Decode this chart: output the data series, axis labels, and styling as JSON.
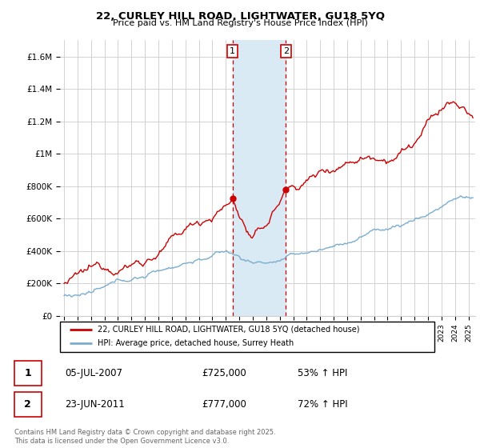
{
  "title1": "22, CURLEY HILL ROAD, LIGHTWATER, GU18 5YQ",
  "title2": "Price paid vs. HM Land Registry's House Price Index (HPI)",
  "ylabel_ticks": [
    "£0",
    "£200K",
    "£400K",
    "£600K",
    "£800K",
    "£1M",
    "£1.2M",
    "£1.4M",
    "£1.6M"
  ],
  "ytick_values": [
    0,
    200000,
    400000,
    600000,
    800000,
    1000000,
    1200000,
    1400000,
    1600000
  ],
  "ylim": [
    0,
    1700000
  ],
  "xlim_start": 1994.7,
  "xlim_end": 2025.5,
  "legend_line1": "22, CURLEY HILL ROAD, LIGHTWATER, GU18 5YQ (detached house)",
  "legend_line2": "HPI: Average price, detached house, Surrey Heath",
  "sale1_date": "05-JUL-2007",
  "sale1_price": "£725,000",
  "sale1_hpi": "53% ↑ HPI",
  "sale1_year": 2007.5,
  "sale1_price_val": 725000,
  "sale2_date": "23-JUN-2011",
  "sale2_price": "£777,000",
  "sale2_hpi": "72% ↑ HPI",
  "sale2_year": 2011.46,
  "sale2_price_val": 777000,
  "copyright": "Contains HM Land Registry data © Crown copyright and database right 2025.\nThis data is licensed under the Open Government Licence v3.0.",
  "red_color": "#cc0000",
  "blue_color": "#7aadcf",
  "shade_color": "#daeaf5",
  "grid_color": "#cccccc"
}
